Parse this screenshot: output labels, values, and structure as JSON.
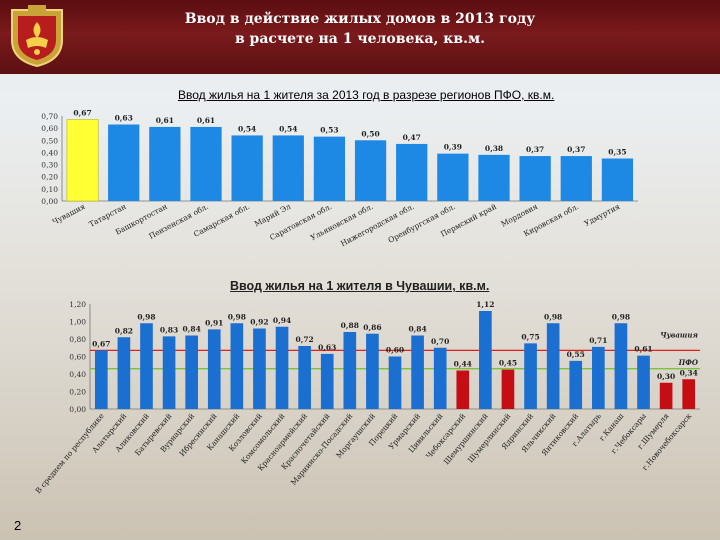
{
  "header": {
    "title_line1": "Ввод в действие жилых домов в 2013 году",
    "title_line2": "в расчете на 1 человека, кв.м."
  },
  "page_number": "2",
  "colors": {
    "header_bg": "#6b1416",
    "bar_blue": "#1e7fd6",
    "bar_blue2": "#1a66c4",
    "bar_yellow": "#ffff33",
    "bar_red": "#c40e14",
    "line_red": "#e0201a",
    "line_green": "#6fbf2a"
  },
  "chart_data": [
    {
      "type": "bar",
      "title": "Ввод жилья на 1 жителя за 2013 год в разрезе регионов ПФО, кв.м.",
      "categories": [
        "Чувашия",
        "Татарстан",
        "Башкортостан",
        "Пензенская обл.",
        "Самарская обл.",
        "Марий Эл",
        "Саратовская обл.",
        "Ульяновская обл.",
        "Нижегородская обл.",
        "Оренбургская обл.",
        "Пермский край",
        "Мордовия",
        "Кировская обл.",
        "Удмуртия"
      ],
      "values": [
        0.67,
        0.63,
        0.61,
        0.61,
        0.54,
        0.54,
        0.53,
        0.5,
        0.47,
        0.39,
        0.38,
        0.37,
        0.37,
        0.35
      ],
      "value_labels": [
        "0,67",
        "0,63",
        "0,61",
        "0,61",
        "0,54",
        "0,54",
        "0,53",
        "0,50",
        "0,47",
        "0,39",
        "0,38",
        "0,37",
        "0,37",
        "0,35"
      ],
      "highlight": [
        0
      ],
      "ylim": [
        0,
        0.7
      ],
      "yticks": [
        "0,00",
        "0,10",
        "0,20",
        "0,30",
        "0,40",
        "0,50",
        "0,60",
        "0,70"
      ],
      "grid": false
    },
    {
      "type": "bar",
      "title": "Ввод жилья на 1 жителя в Чувашии, кв.м.",
      "categories": [
        "В среднем по республике",
        "Алатырский",
        "Аликовский",
        "Батыревский",
        "Вурнарский",
        "Ибресинский",
        "Канашский",
        "Козловский",
        "Комсомольский",
        "Красноармейский",
        "Красночетайский",
        "Мариинско-Посадский",
        "Моргаушский",
        "Порецкий",
        "Урмарский",
        "Цивильский",
        "Чебоксарский",
        "Шемуршинский",
        "Шумерлинский",
        "Ядринский",
        "Яльчикский",
        "Янтиковский",
        "г.Алатырь",
        "г.Канаш",
        "г.Чебоксары",
        "г.Шумерля",
        "г.Новочебоксарск"
      ],
      "values": [
        0.67,
        0.82,
        0.98,
        0.83,
        0.84,
        0.91,
        0.98,
        0.92,
        0.94,
        0.72,
        0.63,
        0.88,
        0.86,
        0.6,
        0.84,
        0.7,
        0.44,
        1.12,
        0.45,
        0.75,
        0.98,
        0.55,
        0.71,
        0.98,
        0.61,
        0.3,
        0.34
      ],
      "value_labels": [
        "0,67",
        "0,82",
        "0,98",
        "0,83",
        "0,84",
        "0,91",
        "0,98",
        "0,92",
        "0,94",
        "0,72",
        "0,63",
        "0,88",
        "0,86",
        "0,60",
        "0,84",
        "0,70",
        "0,44",
        "1,12",
        "0,45",
        "0,75",
        "0,98",
        "0,55",
        "0,71",
        "0,98",
        "0,61",
        "0,30",
        "0,34"
      ],
      "highlight_red": [
        16,
        18,
        25,
        26
      ],
      "ylim": [
        0,
        1.2
      ],
      "yticks": [
        "0,00",
        "0,20",
        "0,40",
        "0,60",
        "0,80",
        "1,00",
        "1,20"
      ],
      "reference_lines": [
        {
          "name": "Чувашия",
          "value": 0.67,
          "color": "#e0201a"
        },
        {
          "name": "ПФО",
          "value": 0.46,
          "color": "#6fbf2a"
        }
      ],
      "grid": false
    }
  ]
}
